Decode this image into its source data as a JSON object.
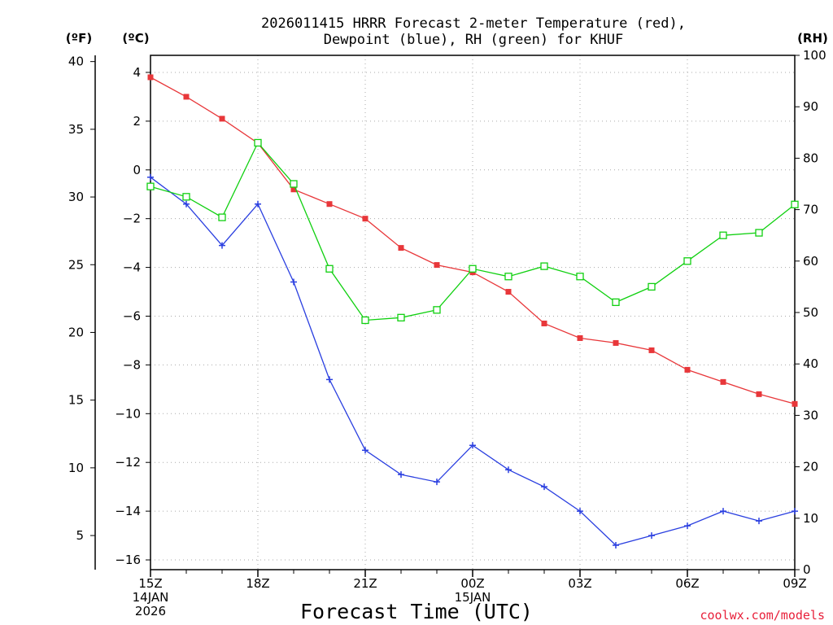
{
  "chart_data": {
    "type": "line",
    "title_line1": "2026011415 HRRR Forecast 2-meter Temperature (red),",
    "title_line2": "Dewpoint (blue), RH (green) for KHUF",
    "xlabel": "Forecast Time (UTC)",
    "credit": "coolwx.com/models",
    "unit_labels": {
      "fahrenheit": "(ºF)",
      "celsius": "(ºC)",
      "rh": "(RH)"
    },
    "x_hours": [
      0,
      1,
      2,
      3,
      4,
      5,
      6,
      7,
      8,
      9,
      10,
      11,
      12,
      13,
      14,
      15,
      16,
      17,
      18
    ],
    "x_ticks": [
      {
        "hour": 0,
        "lines": [
          "15Z",
          "14JAN",
          "2026"
        ]
      },
      {
        "hour": 3,
        "lines": [
          "18Z"
        ]
      },
      {
        "hour": 6,
        "lines": [
          "21Z"
        ]
      },
      {
        "hour": 9,
        "lines": [
          "00Z",
          "15JAN"
        ]
      },
      {
        "hour": 12,
        "lines": [
          "03Z"
        ]
      },
      {
        "hour": 15,
        "lines": [
          "06Z"
        ]
      },
      {
        "hour": 18,
        "lines": [
          "09Z"
        ]
      }
    ],
    "axes": {
      "celsius": {
        "range": [
          -16.4,
          4.7
        ],
        "ticks": [
          4,
          2,
          0,
          -2,
          -4,
          -6,
          -8,
          -10,
          -12,
          -14,
          -16
        ]
      },
      "fahrenheit": {
        "ticks": [
          40,
          35,
          30,
          25,
          20,
          15,
          10,
          5
        ]
      },
      "rh": {
        "range": [
          0,
          100
        ],
        "ticks": [
          100,
          90,
          80,
          70,
          60,
          50,
          40,
          30,
          20,
          10,
          0
        ]
      }
    },
    "series": [
      {
        "name": "Temperature",
        "units": "C",
        "axis": "celsius",
        "color": "#e8373a",
        "marker": "filled-square",
        "values": [
          3.8,
          3.0,
          2.1,
          1.1,
          -0.8,
          -1.4,
          -2.0,
          -3.2,
          -3.9,
          -4.2,
          -5.0,
          -6.3,
          -6.9,
          -7.1,
          -7.4,
          -8.2,
          -8.7,
          -9.2,
          -9.6
        ]
      },
      {
        "name": "Dewpoint",
        "units": "C",
        "axis": "celsius",
        "color": "#2a3fe0",
        "marker": "plus",
        "values": [
          -0.3,
          -1.4,
          -3.1,
          -1.4,
          -4.6,
          -8.6,
          -11.5,
          -12.5,
          -12.8,
          -11.3,
          -12.3,
          -13.0,
          -14.0,
          -15.4,
          -15.0,
          -14.6,
          -14.0,
          -14.4,
          -14.0
        ]
      },
      {
        "name": "RH",
        "units": "%",
        "axis": "rh",
        "color": "#10d010",
        "marker": "open-square",
        "values": [
          74.5,
          72.5,
          68.5,
          83,
          75,
          58.5,
          48.5,
          49,
          50.5,
          58.5,
          57,
          59,
          57,
          52,
          55,
          60,
          65,
          65.5,
          71
        ]
      }
    ]
  }
}
